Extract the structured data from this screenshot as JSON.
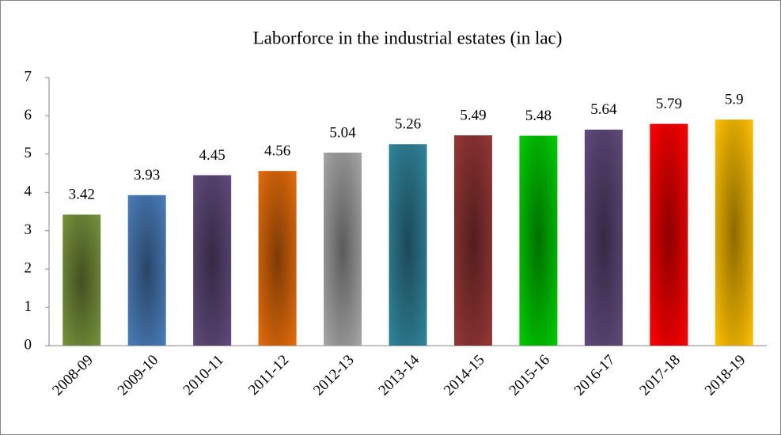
{
  "chart_data": {
    "type": "bar",
    "title": "Laborforce in the industrial estates (in lac)",
    "categories": [
      "2008-09",
      "2009-10",
      "2010-11",
      "2011-12",
      "2012-13",
      "2013-14",
      "2014-15",
      "2015-16",
      "2016-17",
      "2017-18",
      "2018-19"
    ],
    "values": [
      3.42,
      3.93,
      4.45,
      4.56,
      5.04,
      5.26,
      5.49,
      5.48,
      5.64,
      5.79,
      5.9
    ],
    "colors": [
      "#77933c",
      "#4a7ebb",
      "#604a7b",
      "#e46c0a",
      "#a6a6a6",
      "#31859c",
      "#953735",
      "#00cc00",
      "#604a7b",
      "#ff0000",
      "#ffc000"
    ],
    "ylim": [
      0,
      7
    ],
    "yticks": [
      0,
      1,
      2,
      3,
      4,
      5,
      6,
      7
    ],
    "grid": false
  }
}
